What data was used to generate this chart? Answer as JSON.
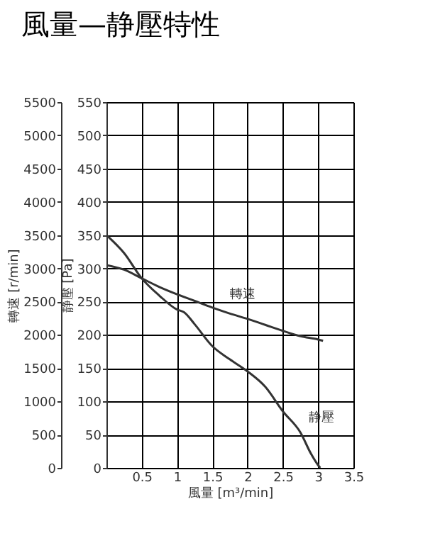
{
  "chart_data": {
    "type": "line",
    "title": "風量—静壓特性",
    "xlabel": "風量 [m³/min]",
    "ylabel": "静壓 [Pa]",
    "y2label": "轉速 [r/min]",
    "xlim": [
      0,
      3.5
    ],
    "xticks": [
      0.5,
      1.0,
      1.5,
      2.0,
      2.5,
      3.0,
      3.5
    ],
    "ylim": [
      0,
      550
    ],
    "yticks": [
      0,
      50,
      100,
      150,
      200,
      250,
      300,
      350,
      400,
      450,
      500,
      550
    ],
    "y2lim": [
      0,
      5500
    ],
    "y2ticks": [
      0,
      500,
      1000,
      1500,
      2000,
      2500,
      3000,
      3500,
      4000,
      4500,
      5000,
      5500
    ],
    "grid": true,
    "series": [
      {
        "name": "轉速",
        "axis": "y2",
        "color": "#333333",
        "x": [
          0,
          0.25,
          0.5,
          0.75,
          1.0,
          1.25,
          1.5,
          1.75,
          2.0,
          2.25,
          2.5,
          2.75,
          3.0,
          3.07
        ],
        "values": [
          3050,
          2980,
          2850,
          2720,
          2610,
          2510,
          2410,
          2320,
          2240,
          2150,
          2060,
          1980,
          1930,
          1910
        ]
      },
      {
        "name": "静壓",
        "axis": "y",
        "color": "#333333",
        "x": [
          0,
          0.25,
          0.5,
          0.75,
          1.0,
          1.1,
          1.25,
          1.5,
          1.75,
          2.0,
          2.25,
          2.5,
          2.75,
          2.9,
          3.0,
          3.03
        ],
        "values": [
          350,
          323,
          285,
          259,
          238,
          234,
          216,
          183,
          163,
          145,
          122,
          85,
          53,
          21,
          4,
          0
        ]
      }
    ]
  }
}
